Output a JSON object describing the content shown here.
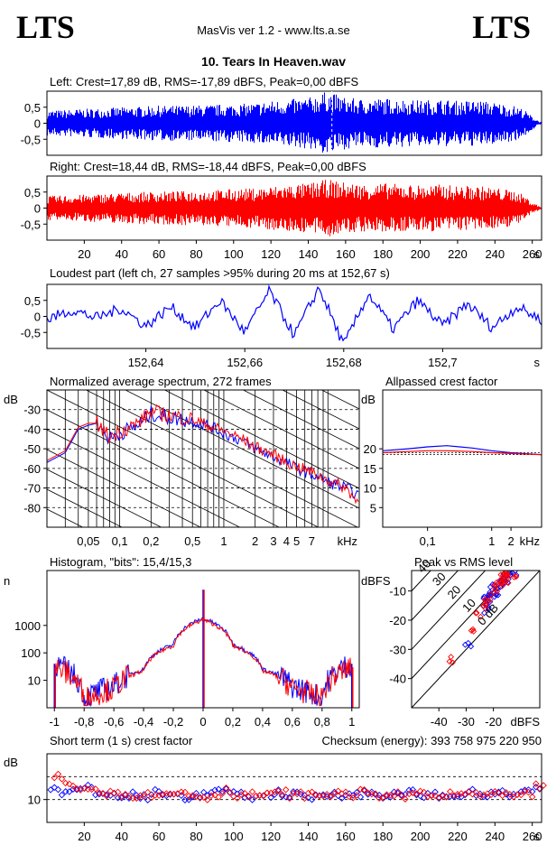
{
  "header": {
    "logo_left": "LTS",
    "logo_right": "LTS",
    "app_title": "MasVis ver 1.2 - www.lts.a.se",
    "song_title": "10. Tears In Heaven.wav"
  },
  "colors": {
    "left": "#0000ff",
    "right": "#ff0000",
    "axis": "#000000"
  },
  "chart_data": [
    {
      "id": "left_waveform",
      "type": "area",
      "title": "Left: Crest=17,89 dB, RMS=-17,89 dBFS, Peak=0,00 dBFS",
      "yticks": [
        "0,5",
        "0",
        "-0,5"
      ],
      "ylim": [
        -1,
        1
      ],
      "xlim": [
        0,
        265
      ],
      "series": [
        {
          "name": "Left",
          "x": [
            0,
            10,
            20,
            30,
            40,
            50,
            60,
            70,
            80,
            90,
            100,
            110,
            120,
            130,
            140,
            150,
            160,
            170,
            180,
            190,
            200,
            210,
            220,
            230,
            240,
            250,
            255,
            260,
            264
          ],
          "amplitude": [
            0.4,
            0.42,
            0.45,
            0.47,
            0.5,
            0.52,
            0.55,
            0.55,
            0.56,
            0.58,
            0.6,
            0.62,
            0.7,
            0.75,
            0.8,
            1.0,
            0.8,
            0.75,
            0.78,
            0.75,
            0.72,
            0.75,
            0.7,
            0.72,
            0.65,
            0.55,
            0.45,
            0.2,
            0.05
          ]
        }
      ],
      "marker_x": 152.67
    },
    {
      "id": "right_waveform",
      "type": "area",
      "title": "Right: Crest=18,44 dB, RMS=-18,44 dBFS, Peak=0,00 dBFS",
      "yticks": [
        "0,5",
        "0",
        "-0,5"
      ],
      "ylim": [
        -1,
        1
      ],
      "xticks": [
        "20",
        "40",
        "60",
        "80",
        "100",
        "120",
        "140",
        "160",
        "180",
        "200",
        "220",
        "240",
        "260"
      ],
      "x_unit": "s",
      "xlim": [
        0,
        265
      ],
      "series": [
        {
          "name": "Right",
          "x": [
            0,
            10,
            20,
            30,
            40,
            50,
            60,
            70,
            80,
            90,
            100,
            110,
            120,
            130,
            140,
            150,
            160,
            170,
            180,
            190,
            200,
            210,
            220,
            230,
            240,
            250,
            255,
            260,
            264
          ],
          "amplitude": [
            0.38,
            0.4,
            0.42,
            0.45,
            0.48,
            0.5,
            0.52,
            0.53,
            0.55,
            0.57,
            0.6,
            0.62,
            0.68,
            0.74,
            0.78,
            0.9,
            0.8,
            0.75,
            0.78,
            0.75,
            0.72,
            0.74,
            0.7,
            0.7,
            0.64,
            0.55,
            0.42,
            0.18,
            0.05
          ]
        }
      ]
    },
    {
      "id": "loudest_part",
      "type": "line",
      "title": "Loudest part (left  ch, 27 samples >95% during 20 ms at 152,67 s)",
      "yticks": [
        "0,5",
        "0",
        "-0,5"
      ],
      "ylim": [
        -1,
        1
      ],
      "xticks": [
        "152,64",
        "152,66",
        "152,68",
        "152,7"
      ],
      "xtick_values": [
        152.64,
        152.66,
        152.68,
        152.7
      ],
      "x_unit": "s",
      "xlim": [
        152.62,
        152.72
      ],
      "series": [
        {
          "name": "Left",
          "x": [
            152.62,
            152.625,
            152.63,
            152.635,
            152.64,
            152.645,
            152.65,
            152.655,
            152.66,
            152.665,
            152.67,
            152.675,
            152.68,
            152.685,
            152.69,
            152.695,
            152.7,
            152.705,
            152.71,
            152.715,
            152.72
          ],
          "y": [
            -0.1,
            0.2,
            -0.05,
            0.25,
            -0.3,
            0.3,
            -0.35,
            0.5,
            -0.5,
            0.8,
            -0.6,
            0.9,
            -0.9,
            0.7,
            -0.4,
            0.5,
            -0.3,
            0.4,
            -0.35,
            0.3,
            -0.1
          ]
        }
      ]
    },
    {
      "id": "avg_spectrum",
      "type": "line",
      "title": "Normalized average spectrum, 272 frames",
      "ylabel": "dB",
      "yticks": [
        "-30",
        "-40",
        "-50",
        "-60",
        "-70",
        "-80"
      ],
      "ylim": [
        -90,
        -20
      ],
      "xticks": [
        "0,05",
        "0,1",
        "0,2",
        "0,5",
        "1",
        "2",
        "3",
        "4",
        "5",
        "7"
      ],
      "xtick_values": [
        0.05,
        0.1,
        0.2,
        0.5,
        1,
        2,
        3,
        4,
        5,
        7
      ],
      "x_unit": "kHz",
      "xlim": [
        0.02,
        20
      ],
      "log_x": true,
      "grid": true,
      "series": [
        {
          "name": "Left",
          "x": [
            0.02,
            0.03,
            0.04,
            0.05,
            0.06,
            0.08,
            0.1,
            0.15,
            0.2,
            0.3,
            0.5,
            0.7,
            1,
            1.5,
            2,
            3,
            4,
            5,
            7,
            10,
            15,
            20
          ],
          "y": [
            -57,
            -52,
            -40,
            -38,
            -37,
            -45,
            -42,
            -38,
            -32,
            -34,
            -36,
            -38,
            -42,
            -46,
            -50,
            -54,
            -57,
            -60,
            -63,
            -67,
            -70,
            -74
          ]
        },
        {
          "name": "Right",
          "x": [
            0.02,
            0.03,
            0.04,
            0.05,
            0.06,
            0.08,
            0.1,
            0.15,
            0.2,
            0.3,
            0.5,
            0.7,
            1,
            1.5,
            2,
            3,
            4,
            5,
            7,
            10,
            15,
            20
          ],
          "y": [
            -56,
            -51,
            -39,
            -37,
            -37,
            -44,
            -41,
            -37,
            -31,
            -33,
            -35,
            -38,
            -41,
            -45,
            -49,
            -53,
            -57,
            -59,
            -62,
            -66,
            -70,
            -78
          ]
        }
      ]
    },
    {
      "id": "allpassed_crest",
      "type": "line",
      "title": "Allpassed crest factor",
      "ylabel": "dB",
      "yticks": [
        "20",
        "15",
        "10",
        "5"
      ],
      "ylim": [
        0,
        35
      ],
      "xticks": [
        "0,1",
        "1",
        "2"
      ],
      "xtick_values": [
        0.1,
        1,
        2
      ],
      "x_unit": "kHz",
      "xlim": [
        0.02,
        6
      ],
      "log_x": true,
      "series": [
        {
          "name": "Left",
          "x": [
            0.02,
            0.05,
            0.1,
            0.2,
            0.5,
            1,
            2,
            6
          ],
          "y": [
            19.5,
            20.0,
            20.5,
            20.8,
            20.2,
            19.5,
            19.0,
            18.5
          ]
        },
        {
          "name": "Right",
          "x": [
            0.02,
            0.05,
            0.1,
            0.2,
            0.5,
            1,
            2,
            6
          ],
          "y": [
            19.0,
            19.3,
            19.5,
            19.5,
            19.3,
            19.0,
            18.8,
            18.5
          ]
        }
      ],
      "reference_lines": [
        19.0,
        18.5
      ]
    },
    {
      "id": "histogram",
      "type": "line",
      "title": "Histogram, \"bits\": 15,4/15,3",
      "ylabel": "n",
      "yticks": [
        "1000",
        "100",
        "10"
      ],
      "ylim": [
        1,
        100000
      ],
      "log_y": true,
      "xticks": [
        "-1",
        "-0,8",
        "-0,6",
        "-0,4",
        "-0,2",
        "0",
        "0,2",
        "0,4",
        "0,6",
        "0,8",
        "1"
      ],
      "xtick_values": [
        -1,
        -0.8,
        -0.6,
        -0.4,
        -0.2,
        0,
        0.2,
        0.4,
        0.6,
        0.8,
        1
      ],
      "xlim": [
        -1.05,
        1.05
      ],
      "series": [
        {
          "name": "Left",
          "x": [
            -1,
            -0.8,
            -0.6,
            -0.4,
            -0.2,
            0,
            0.2,
            0.4,
            0.6,
            0.8,
            1
          ],
          "y": [
            40,
            2,
            6,
            25,
            200,
            1800,
            200,
            25,
            6,
            2,
            40
          ]
        },
        {
          "name": "Right",
          "x": [
            -1,
            -0.8,
            -0.6,
            -0.4,
            -0.2,
            0,
            0.2,
            0.4,
            0.6,
            0.8,
            1
          ],
          "y": [
            30,
            2,
            5,
            22,
            180,
            1600,
            180,
            22,
            5,
            2,
            30
          ]
        }
      ]
    },
    {
      "id": "peak_vs_rms",
      "type": "scatter",
      "title": "Peak vs RMS level",
      "ylabel": "dBFS",
      "yticks": [
        "-10",
        "-20",
        "-30",
        "-40"
      ],
      "ylim": [
        -50,
        -3
      ],
      "xlabel": "dBFS",
      "xticks": [
        "-40",
        "-30",
        "-20"
      ],
      "xtick_values": [
        -40,
        -30,
        -20
      ],
      "xlim": [
        -50,
        -3
      ],
      "diagonal_labels": [
        "40",
        "30",
        "20",
        "10",
        "0 dB"
      ],
      "series": [
        {
          "name": "Left",
          "x": [
            -23,
            -22,
            -21,
            -20,
            -19,
            -18,
            -17,
            -16,
            -15,
            -14,
            -13,
            -22,
            -19,
            -16,
            -21,
            -29
          ],
          "y": [
            -14,
            -12,
            -11,
            -10,
            -9,
            -8,
            -7,
            -6,
            -5,
            -5,
            -4,
            -17,
            -11,
            -7,
            -13,
            -28
          ]
        },
        {
          "name": "Right",
          "x": [
            -24,
            -22,
            -20,
            -19,
            -18,
            -17,
            -16,
            -15,
            -14,
            -13,
            -25,
            -23,
            -18,
            -16,
            -28,
            -35
          ],
          "y": [
            -15,
            -12,
            -10,
            -9,
            -8,
            -7,
            -6,
            -5,
            -4,
            -4,
            -18,
            -14,
            -6,
            -5,
            -24,
            -33
          ]
        }
      ]
    },
    {
      "id": "short_term_crest",
      "type": "scatter",
      "title": "Short term (1 s) crest factor",
      "checksum": "Checksum (energy):   393 758 975 220 950",
      "ylabel": "dB",
      "yticks": [
        "10"
      ],
      "ylim": [
        0,
        30
      ],
      "xticks": [
        "20",
        "40",
        "60",
        "80",
        "100",
        "120",
        "140",
        "160",
        "180",
        "200",
        "220",
        "240",
        "260"
      ],
      "x_unit": "s",
      "xlim": [
        0,
        265
      ],
      "reference_lines": [
        10,
        20
      ],
      "series": [
        {
          "name": "Left",
          "x": [
            2,
            8,
            14,
            20,
            26,
            32,
            38,
            44,
            50,
            56,
            62,
            68,
            74,
            80,
            86,
            92,
            98,
            104,
            110,
            116,
            122,
            128,
            134,
            140,
            146,
            152,
            158,
            164,
            170,
            176,
            182,
            188,
            194,
            200,
            206,
            212,
            218,
            224,
            230,
            236,
            242,
            248,
            254,
            260
          ],
          "y": [
            15,
            13,
            14,
            15,
            13,
            12,
            11,
            12,
            11,
            13,
            12,
            12,
            11,
            12,
            13,
            14,
            12,
            12,
            11,
            12,
            13,
            12,
            12,
            11,
            12,
            13,
            12,
            12,
            13,
            12,
            12,
            12,
            13,
            12,
            12,
            11,
            12,
            13,
            12,
            12,
            13,
            12,
            13,
            14
          ]
        },
        {
          "name": "Right",
          "x": [
            4,
            10,
            16,
            22,
            28,
            34,
            40,
            46,
            52,
            58,
            64,
            70,
            76,
            82,
            88,
            94,
            100,
            106,
            112,
            118,
            124,
            130,
            136,
            142,
            148,
            154,
            160,
            166,
            172,
            178,
            184,
            190,
            196,
            202,
            208,
            214,
            220,
            226,
            232,
            238,
            244,
            250,
            256,
            262
          ],
          "y": [
            20,
            16,
            15,
            14,
            13,
            14,
            12,
            12,
            12,
            13,
            12,
            13,
            12,
            11,
            12,
            14,
            12,
            12,
            12,
            12,
            13,
            12,
            12,
            12,
            12,
            13,
            12,
            13,
            12,
            12,
            12,
            11,
            13,
            12,
            11,
            12,
            12,
            13,
            12,
            12,
            12,
            11,
            12,
            16
          ]
        }
      ]
    }
  ]
}
